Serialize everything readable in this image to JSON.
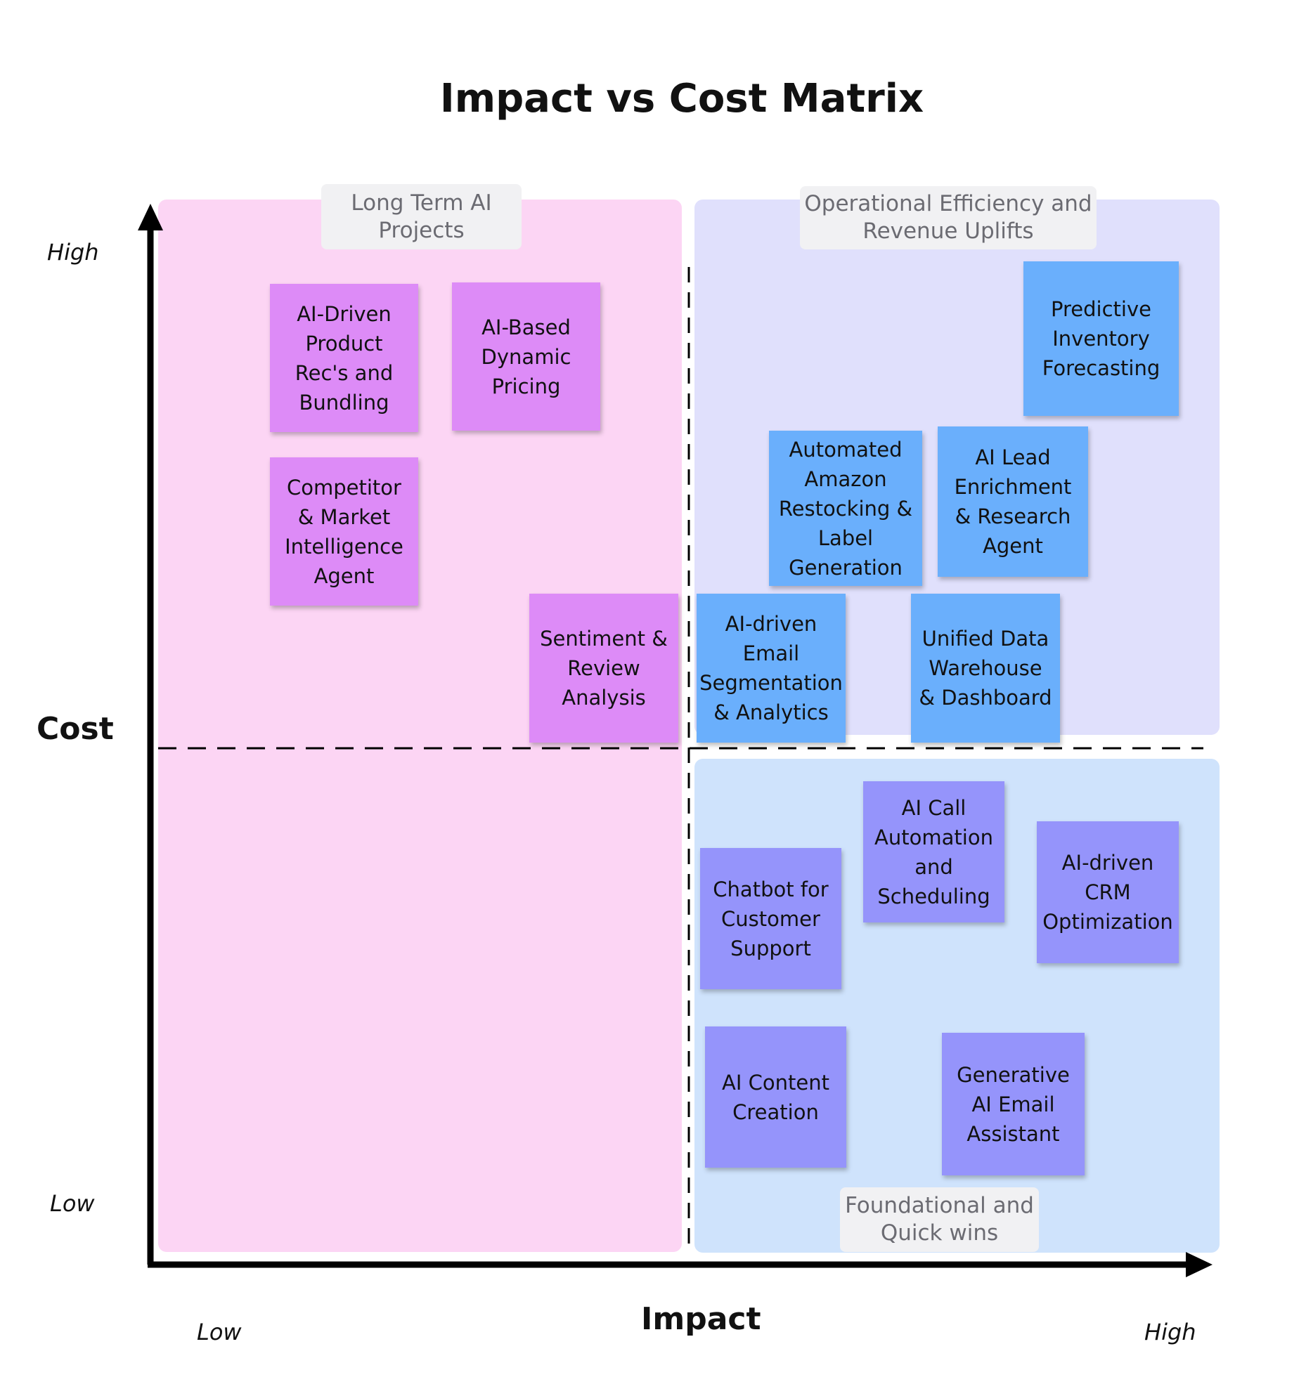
{
  "title": "Impact vs Cost Matrix",
  "axes": {
    "y_title": "Cost",
    "y_high": "High",
    "y_low": "Low",
    "x_title": "Impact",
    "x_low": "Low",
    "x_high": "High"
  },
  "quadrant_tags": {
    "top_left": "Long Term AI\nProjects",
    "top_right": "Operational Efficiency and\nRevenue Uplifts",
    "bottom_right": "Foundational and\nQuick wins"
  },
  "notes": {
    "ai_driven_product": "AI-Driven\nProduct\nRec's and\nBundling",
    "ai_based_pricing": "AI-Based\nDynamic\nPricing",
    "competitor_agent": "Competitor\n& Market\nIntelligence\nAgent",
    "sentiment_analysis": "Sentiment &\nReview\nAnalysis",
    "predictive_inventory": "Predictive\nInventory\nForecasting",
    "amazon_restocking": "Automated\nAmazon\nRestocking &\nLabel\nGeneration",
    "lead_enrichment": "AI Lead\nEnrichment\n& Research\nAgent",
    "email_segmentation": "AI-driven\nEmail\nSegmentation\n& Analytics",
    "data_warehouse": "Unified Data\nWarehouse\n& Dashboard",
    "call_automation": "AI Call\nAutomation\nand\nScheduling",
    "chatbot_support": "Chatbot for\nCustomer\nSupport",
    "crm_optimization": "AI-driven\nCRM\nOptimization",
    "content_creation": "AI Content\nCreation",
    "email_assistant": "Generative\nAI Email\nAssistant"
  },
  "colors": {
    "zone_pink": "#fcd5f4",
    "zone_lavender": "#e0e0fc",
    "zone_lightblue": "#cfe3fc",
    "note_violet": "#dd8bf7",
    "note_blue": "#6aaffc",
    "note_periwinkle": "#9594fb"
  }
}
